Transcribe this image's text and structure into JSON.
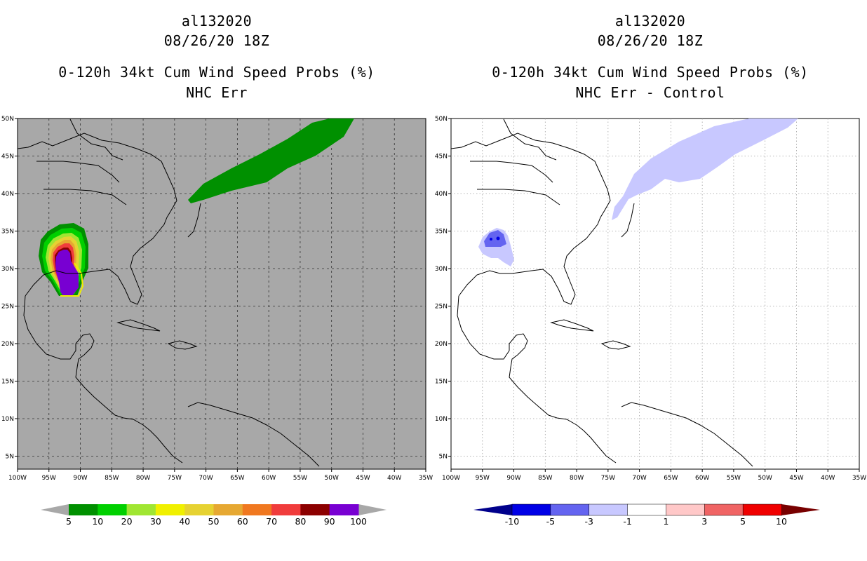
{
  "panels": {
    "left": {
      "storm_id": "al132020",
      "datetime": "08/26/20 18Z",
      "product": "0-120h 34kt Cum Wind Speed Probs (%)",
      "subtitle": "NHC Err",
      "map_background": "#a8a8a8",
      "colorbar": {
        "colors": [
          "#009000",
          "#00d000",
          "#a0e632",
          "#f0f000",
          "#e6d232",
          "#e6a832",
          "#f07820",
          "#f03c3c",
          "#8c0000",
          "#7800d2"
        ],
        "end_arrow_color": "#a8a8a8",
        "labels": [
          "5",
          "10",
          "20",
          "30",
          "40",
          "50",
          "60",
          "70",
          "80",
          "90",
          "100"
        ]
      }
    },
    "right": {
      "storm_id": "al132020",
      "datetime": "08/26/20 18Z",
      "product": "0-120h 34kt Cum Wind Speed Probs (%)",
      "subtitle": "NHC Err - Control",
      "map_background": "#ffffff",
      "colorbar": {
        "colors": [
          "#0000e6",
          "#6464f0",
          "#c8c8ff",
          "#ffffff",
          "#ffc8c8",
          "#f06464",
          "#f00000"
        ],
        "low_arrow_color": "#00008c",
        "high_arrow_color": "#780000",
        "labels": [
          "-10",
          "-5",
          "-3",
          "-1",
          "1",
          "3",
          "5",
          "10"
        ]
      }
    }
  },
  "axes": {
    "lon_labels": [
      "100W",
      "95W",
      "90W",
      "85W",
      "80W",
      "75W",
      "70W",
      "65W",
      "60W",
      "55W",
      "50W",
      "45W",
      "40W",
      "35W"
    ],
    "lat_labels": [
      "50N",
      "45N",
      "40N",
      "35N",
      "30N",
      "25N",
      "20N",
      "15N",
      "10N",
      "5N"
    ]
  }
}
